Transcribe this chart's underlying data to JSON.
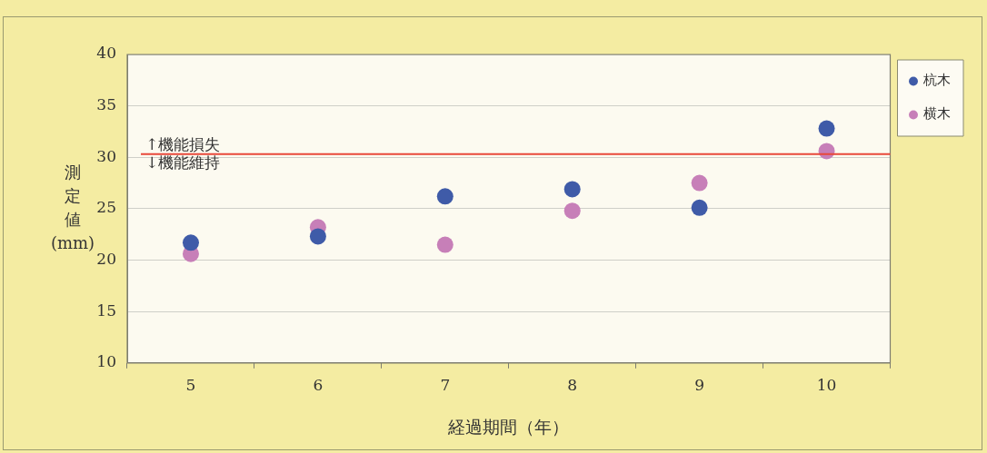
{
  "chart_data": {
    "type": "scatter",
    "xlabel": "経過期間（年）",
    "ylabel": "測定値(mm)",
    "categories": [
      "5",
      "6",
      "7",
      "8",
      "9",
      "10"
    ],
    "series": [
      {
        "name": "杭木",
        "color": "#3f5ba8",
        "values": [
          21.7,
          22.3,
          26.2,
          26.9,
          25.1,
          32.8
        ]
      },
      {
        "name": "横木",
        "color": "#c77fb8",
        "values": [
          20.6,
          23.2,
          21.5,
          24.8,
          27.5,
          30.6
        ]
      }
    ],
    "ylim": [
      10,
      40
    ],
    "yticks": [
      10,
      15,
      20,
      25,
      30,
      35,
      40
    ],
    "grid": "y",
    "legend": "right",
    "marker": "circle",
    "ref_lines": [
      {
        "axis": "y",
        "value": 30.3,
        "color": "#e8483a"
      }
    ],
    "annotations": [
      "↑機能損失",
      "↓機能維持"
    ]
  }
}
